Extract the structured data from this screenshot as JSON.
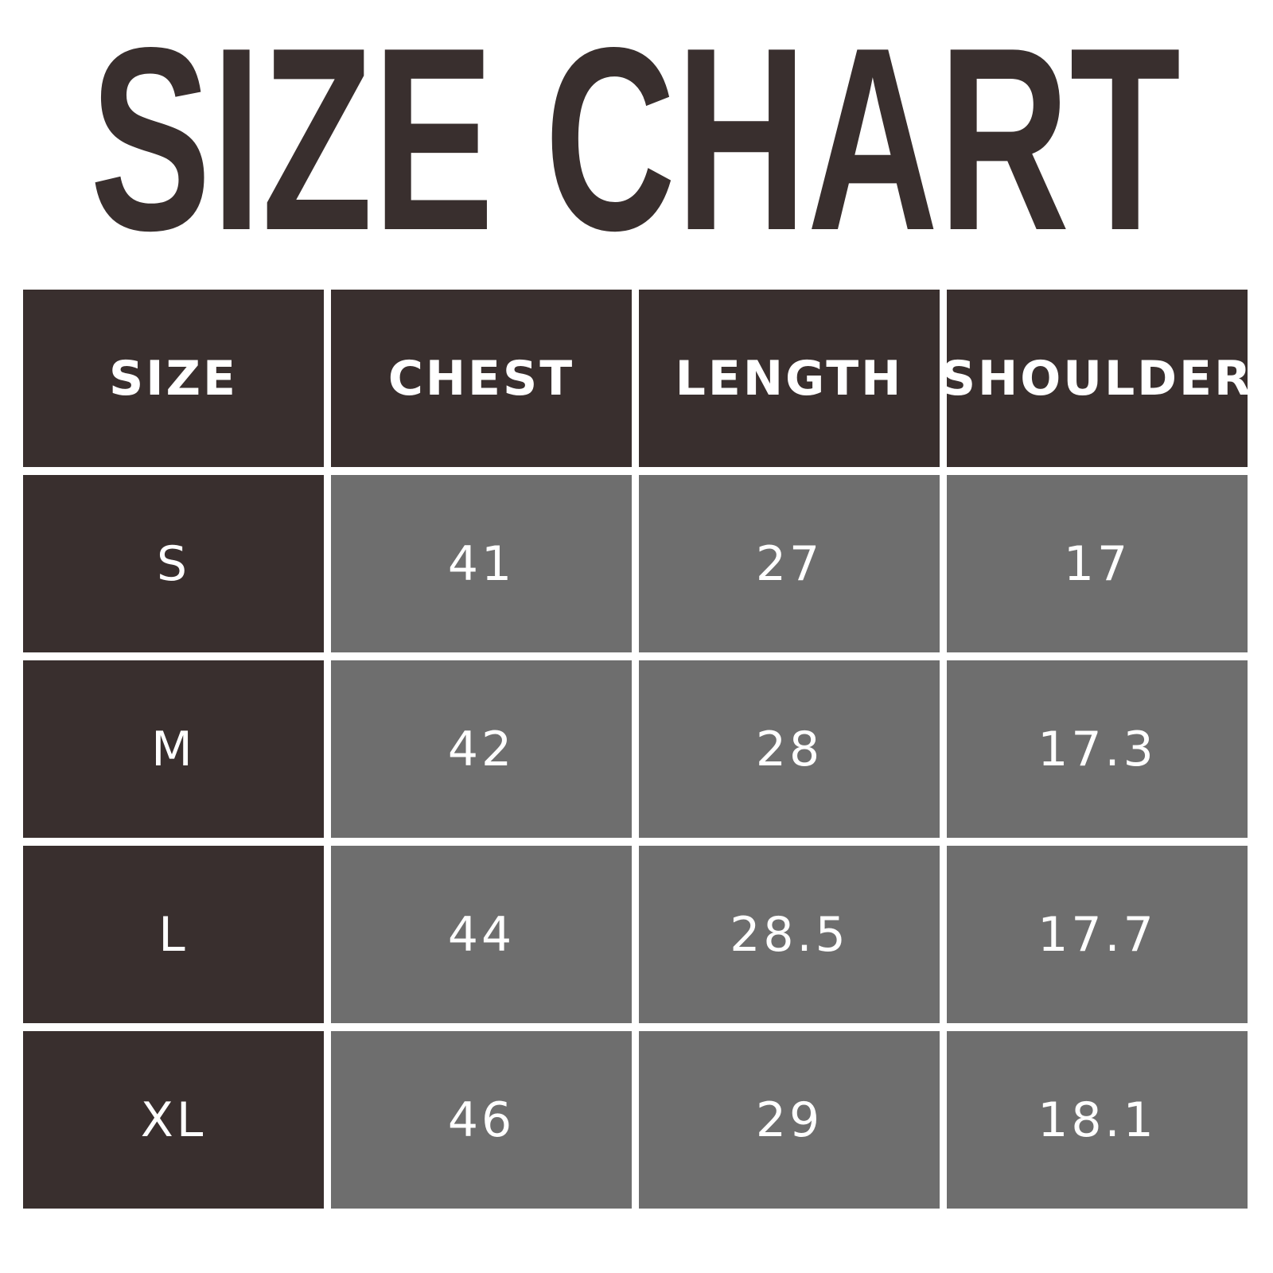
{
  "title": "SIZE CHART",
  "colors": {
    "dark": "#392f2e",
    "gray": "#6e6e6e",
    "text": "#ffffff"
  },
  "table": {
    "headers": [
      "SIZE",
      "CHEST",
      "LENGTH",
      "SHOULDER"
    ],
    "rows": [
      [
        "S",
        "41",
        "27",
        "17"
      ],
      [
        "M",
        "42",
        "28",
        "17.3"
      ],
      [
        "L",
        "44",
        "28.5",
        "17.7"
      ],
      [
        "XL",
        "46",
        "29",
        "18.1"
      ]
    ]
  }
}
